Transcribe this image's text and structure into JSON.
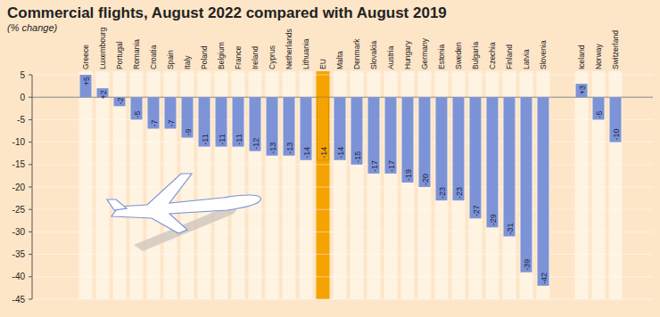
{
  "chart_data": {
    "type": "bar",
    "title": "Commercial flights, August 2022 compared with August 2019",
    "subtitle": "(% change)",
    "categories": [
      "Greece",
      "Luxembourg",
      "Portugal",
      "Romania",
      "Croatia",
      "Spain",
      "Italy",
      "Poland",
      "Belgium",
      "France",
      "Ireland",
      "Cyprus",
      "Netherlands",
      "Lithuania",
      "EU",
      "Malta",
      "Denmark",
      "Slovakia",
      "Austria",
      "Hungary",
      "Germany",
      "Estonia",
      "Sweden",
      "Bulgaria",
      "Czechia",
      "Finland",
      "Latvia",
      "Slovenia",
      "Iceland",
      "Norway",
      "Switzerland"
    ],
    "values": [
      5,
      2,
      -2,
      -5,
      -7,
      -7,
      -9,
      -11,
      -11,
      -11,
      -12,
      -13,
      -13,
      -14,
      -14,
      -14,
      -15,
      -17,
      -17,
      -19,
      -20,
      -23,
      -23,
      -27,
      -29,
      -31,
      -39,
      -42,
      3,
      -5,
      -10
    ],
    "value_labels": [
      "+5",
      "+2",
      "-2",
      "-5",
      "-7",
      "-7",
      "-9",
      "-11",
      "-11",
      "-11",
      "-12",
      "-13",
      "-13",
      "-14",
      "-14",
      "-14",
      "-15",
      "-17",
      "-17",
      "-19",
      "-20",
      "-23",
      "-23",
      "-27",
      "-29",
      "-31",
      "-39",
      "-42",
      "+3",
      "-5",
      "-10"
    ],
    "colors": [
      "#7d93d8",
      "#7d93d8",
      "#7d93d8",
      "#7d93d8",
      "#7d93d8",
      "#7d93d8",
      "#7d93d8",
      "#7d93d8",
      "#7d93d8",
      "#7d93d8",
      "#7d93d8",
      "#7d93d8",
      "#7d93d8",
      "#7d93d8",
      "#f5a300",
      "#7d93d8",
      "#7d93d8",
      "#7d93d8",
      "#7d93d8",
      "#7d93d8",
      "#7d93d8",
      "#7d93d8",
      "#7d93d8",
      "#7d93d8",
      "#7d93d8",
      "#7d93d8",
      "#7d93d8",
      "#7d93d8",
      "#7d93d8",
      "#7d93d8",
      "#7d93d8"
    ],
    "ylim": [
      -45,
      5
    ],
    "yticks": [
      5,
      0,
      -5,
      -10,
      -15,
      -20,
      -25,
      -30,
      -35,
      -40,
      -45
    ],
    "grid": true,
    "data_labels": true
  }
}
